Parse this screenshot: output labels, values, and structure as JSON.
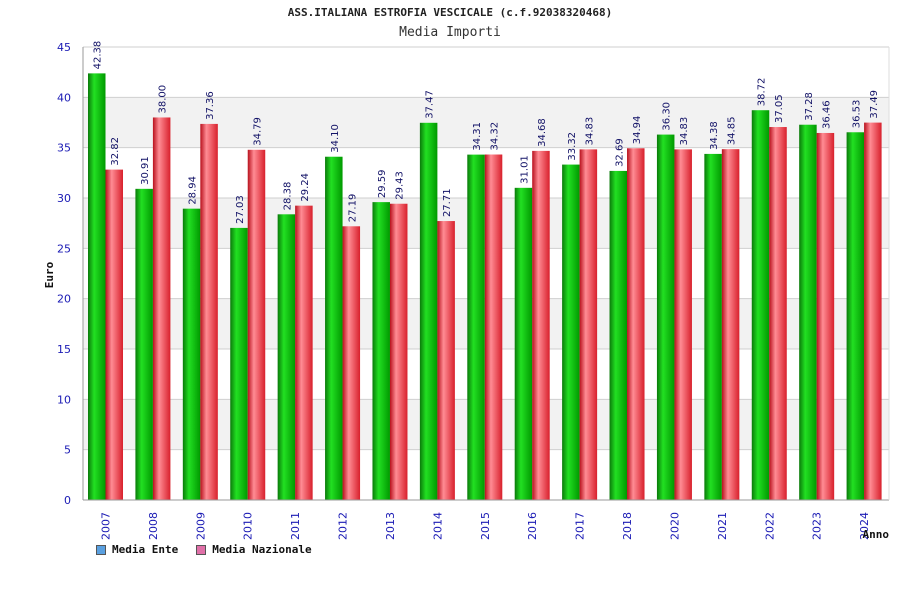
{
  "title": "ASS.ITALIANA ESTROFIA VESCICALE (c.f.92038320468)",
  "subtitle": "Media Importi",
  "colors": {
    "ente": "#00b400",
    "nazionale": "#e8404a",
    "legend_ente": "#5aa0e0",
    "legend_nazionale": "#e070a8",
    "tick_label": "#1a1ab4",
    "value_label": "#111166",
    "band": "#f2f2f2",
    "grid": "#cfcfcf"
  },
  "legend": {
    "ente_label": "Media Ente",
    "nazionale_label": "Media Nazionale"
  },
  "chart_data": {
    "type": "bar",
    "title": "ASS.ITALIANA ESTROFIA VESCICALE (c.f.92038320468)",
    "subtitle": "Media Importi",
    "xlabel": "Anno",
    "ylabel": "Euro",
    "ylim": [
      0,
      45
    ],
    "yticks": [
      "0",
      "5",
      "10",
      "15",
      "20",
      "25",
      "30",
      "35",
      "40",
      "45"
    ],
    "grid": true,
    "legend_position": "bottom-left",
    "categories": [
      "2007",
      "2008",
      "2009",
      "2010",
      "2011",
      "2012",
      "2013",
      "2014",
      "2015",
      "2016",
      "2017",
      "2018",
      "2020",
      "2021",
      "2022",
      "2023",
      "2024"
    ],
    "series": [
      {
        "name": "Media Ente",
        "values": [
          42.38,
          30.91,
          28.94,
          27.03,
          28.38,
          34.1,
          29.59,
          37.47,
          34.31,
          31.01,
          33.32,
          32.69,
          36.3,
          34.38,
          38.72,
          37.28,
          36.53
        ],
        "labels": [
          "42.38",
          "30.91",
          "28.94",
          "27.03",
          "28.38",
          "34.10",
          "29.59",
          "37.47",
          "34.31",
          "31.01",
          "33.32",
          "32.69",
          "36.30",
          "34.38",
          "38.72",
          "37.28",
          "36.53"
        ]
      },
      {
        "name": "Media Nazionale",
        "values": [
          32.82,
          38.0,
          37.36,
          34.79,
          29.24,
          27.19,
          29.43,
          27.71,
          34.32,
          34.68,
          34.83,
          34.94,
          34.83,
          34.85,
          37.05,
          36.46,
          37.49
        ],
        "labels": [
          "32.82",
          "38.00",
          "37.36",
          "34.79",
          "29.24",
          "27.19",
          "29.43",
          "27.71",
          "34.32",
          "34.68",
          "34.83",
          "34.94",
          "34.83",
          "34.85",
          "37.05",
          "36.46",
          "37.49"
        ]
      }
    ]
  }
}
